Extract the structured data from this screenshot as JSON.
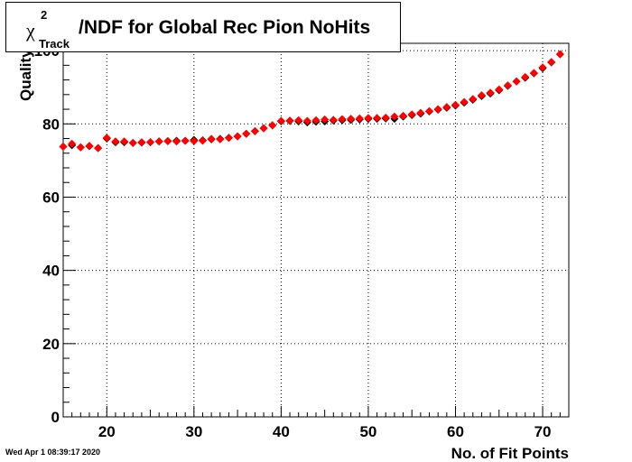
{
  "chart_data": {
    "type": "scatter",
    "title": {
      "symbol": "χ",
      "superscript": "2",
      "subscript": "Track",
      "text": "/NDF for Global Rec Pion NoHits"
    },
    "xlabel": "No. of Fit Points",
    "ylabel": "Quality",
    "xlim": [
      15,
      73
    ],
    "ylim": [
      0,
      102
    ],
    "xticks": [
      20,
      30,
      40,
      50,
      60,
      70
    ],
    "yticks": [
      0,
      20,
      40,
      60,
      80,
      100
    ],
    "grid": true,
    "series": [
      {
        "color": "#000000",
        "x": [
          15,
          16,
          17,
          18,
          19,
          20,
          21,
          22,
          23,
          24,
          25,
          26,
          27,
          28,
          29,
          30,
          31,
          32,
          33,
          34,
          35,
          36,
          37,
          38,
          39,
          40,
          41,
          42,
          43,
          44,
          45,
          46,
          47,
          48,
          49,
          50,
          51,
          52,
          53,
          54,
          55,
          56,
          57,
          58,
          59,
          60,
          61,
          62,
          63,
          64,
          65,
          66,
          67,
          68,
          69,
          70,
          71,
          72
        ],
        "y": [
          73.8,
          74.2,
          73.6,
          73.9,
          73.4,
          76.0,
          75.0,
          75.0,
          74.8,
          74.9,
          75.0,
          75.2,
          75.3,
          75.4,
          75.4,
          75.6,
          75.5,
          75.8,
          75.9,
          76.2,
          76.6,
          77.3,
          78.0,
          78.8,
          79.6,
          80.7,
          80.8,
          80.7,
          80.4,
          80.6,
          80.7,
          80.9,
          81.0,
          81.1,
          81.2,
          81.4,
          81.4,
          81.5,
          81.4,
          82.0,
          82.4,
          82.8,
          83.4,
          83.9,
          84.4,
          85.0,
          85.8,
          86.6,
          87.6,
          88.3,
          89.2,
          90.4,
          91.6,
          92.6,
          93.8,
          95.2,
          96.8,
          99.0
        ]
      },
      {
        "color": "#ff0000",
        "x": [
          15,
          16,
          17,
          18,
          19,
          20,
          21,
          22,
          23,
          24,
          25,
          26,
          27,
          28,
          29,
          30,
          31,
          32,
          33,
          34,
          35,
          36,
          37,
          38,
          39,
          40,
          41,
          42,
          43,
          44,
          45,
          46,
          47,
          48,
          49,
          50,
          51,
          52,
          53,
          54,
          55,
          56,
          57,
          58,
          59,
          60,
          61,
          62,
          63,
          64,
          65,
          66,
          67,
          68,
          69,
          70,
          71,
          72
        ],
        "y": [
          73.8,
          74.6,
          73.6,
          74.0,
          73.4,
          76.2,
          75.2,
          75.2,
          74.8,
          75.0,
          75.0,
          75.2,
          75.3,
          75.2,
          75.4,
          75.3,
          75.4,
          75.9,
          75.8,
          76.2,
          76.6,
          77.3,
          78.0,
          78.8,
          79.6,
          80.8,
          80.9,
          81.0,
          80.8,
          81.0,
          81.2,
          81.1,
          81.3,
          81.4,
          81.5,
          81.6,
          81.6,
          81.7,
          82.0,
          82.2,
          82.6,
          83.0,
          83.5,
          84.0,
          84.6,
          85.2,
          86.0,
          86.8,
          87.8,
          88.5,
          89.4,
          90.5,
          91.6,
          92.8,
          93.9,
          95.4,
          96.9,
          99.0
        ]
      }
    ]
  },
  "footer": {
    "timestamp": "Wed Apr  1 08:39:17 2020"
  }
}
